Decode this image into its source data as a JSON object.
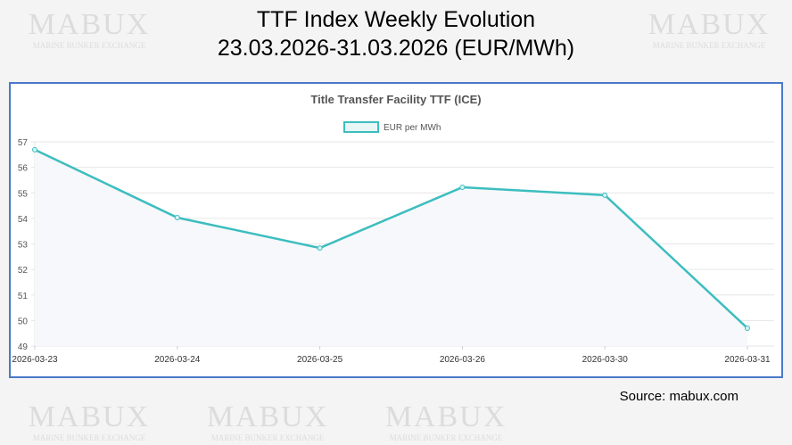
{
  "header": {
    "title_line1": "TTF Index Weekly Evolution",
    "title_line2": "23.03.2026-31.03.2026 (EUR/MWh)"
  },
  "watermark": {
    "brand": "MABUX",
    "tagline": "Marine Bunker Exchange"
  },
  "source": "Source: mabux.com",
  "colors": {
    "line": "#3dbdbf",
    "border": "#4a78c8",
    "fill": "#f6f8fb"
  },
  "chart_data": {
    "type": "line",
    "title": "Title Transfer Facility TTF (ICE)",
    "legend": "EUR per MWh",
    "legend_position": "top-center",
    "categories": [
      "2026-03-23",
      "2026-03-24",
      "2026-03-25",
      "2026-03-26",
      "2026-03-30",
      "2026-03-31"
    ],
    "series": [
      {
        "name": "EUR per MWh",
        "values": [
          56.69,
          54.03,
          52.84,
          55.22,
          54.91,
          49.7
        ]
      }
    ],
    "ylim": [
      49,
      57
    ],
    "yticks": [
      49,
      50,
      51,
      52,
      53,
      54,
      55,
      56,
      57
    ],
    "grid": true
  }
}
